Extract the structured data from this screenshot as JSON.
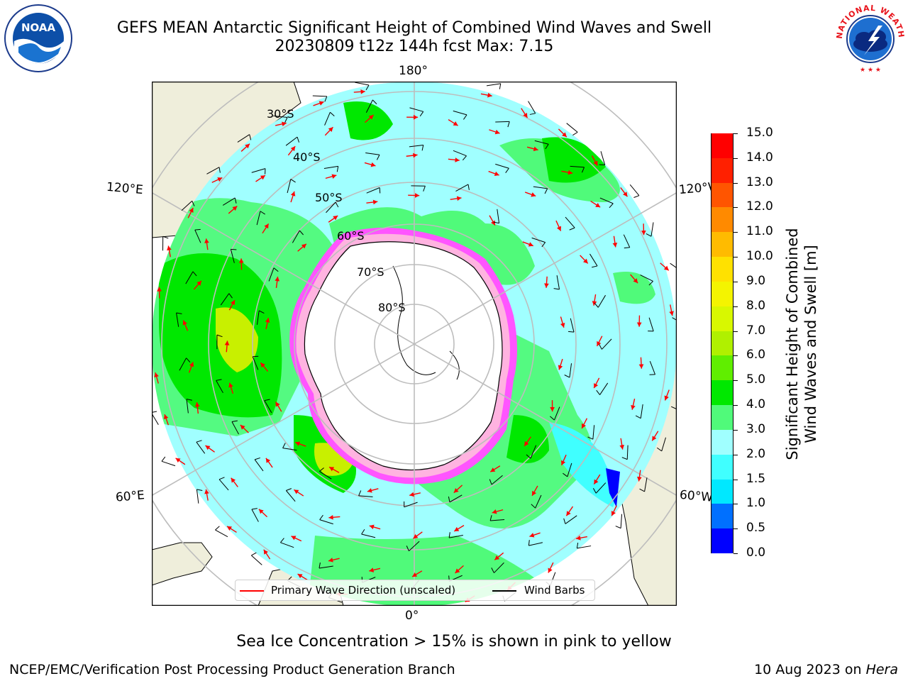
{
  "title": {
    "line1": "GEFS MEAN Antarctic Significant Height of Combined Wind Waves and Swell",
    "line2": "20230809 t12z 144h fcst   Max: 7.15"
  },
  "map": {
    "projection": "south-polar-stereographic",
    "longitude_labels": {
      "top": "180°",
      "bottom": "0°",
      "upper_left": "120°E",
      "upper_right": "120°W",
      "lower_left": "60°E",
      "lower_right": "60°W"
    },
    "latitude_labels": [
      "30°S",
      "40°S",
      "50°S",
      "60°S",
      "70°S",
      "80°S"
    ],
    "colors": {
      "land": "#efeedb",
      "ice_low": "#ff44ff",
      "ice_high": "#ffe94a",
      "wave_arrow": "#ff0000",
      "wind_barb": "#000000",
      "grid": "#bdbdbd"
    }
  },
  "colorbar": {
    "label_line1": "Significant Height of Combined",
    "label_line2": "Wind Waves and Swell [m]",
    "ticks": [
      "0.0",
      "0.5",
      "1.0",
      "1.5",
      "2.0",
      "3.0",
      "4.0",
      "5.0",
      "6.0",
      "7.0",
      "8.0",
      "9.0",
      "10.0",
      "11.0",
      "12.0",
      "13.0",
      "14.0",
      "15.0"
    ],
    "colors": [
      "#0000ff",
      "#0070ff",
      "#00e8ff",
      "#40ffff",
      "#a0ffff",
      "#50fa7a",
      "#00e800",
      "#60ee00",
      "#b0f000",
      "#d8f800",
      "#f4f400",
      "#ffe100",
      "#ffbb00",
      "#ff8a00",
      "#ff5500",
      "#ff2000",
      "#ff0000"
    ]
  },
  "legend": {
    "wave_direction": "Primary Wave Direction (unscaled)",
    "wind_barbs": "Wind Barbs"
  },
  "note": "Sea Ice Concentration > 15% is shown in pink to yellow",
  "footer": {
    "left": "NCEP/EMC/Verification Post Processing Product Generation Branch",
    "right_date": "10 Aug 2023 on",
    "right_machine": "Hera"
  },
  "logos": {
    "noaa_text": "NOAA",
    "nws_text": "NATIONAL WEATHER SERVICE"
  }
}
